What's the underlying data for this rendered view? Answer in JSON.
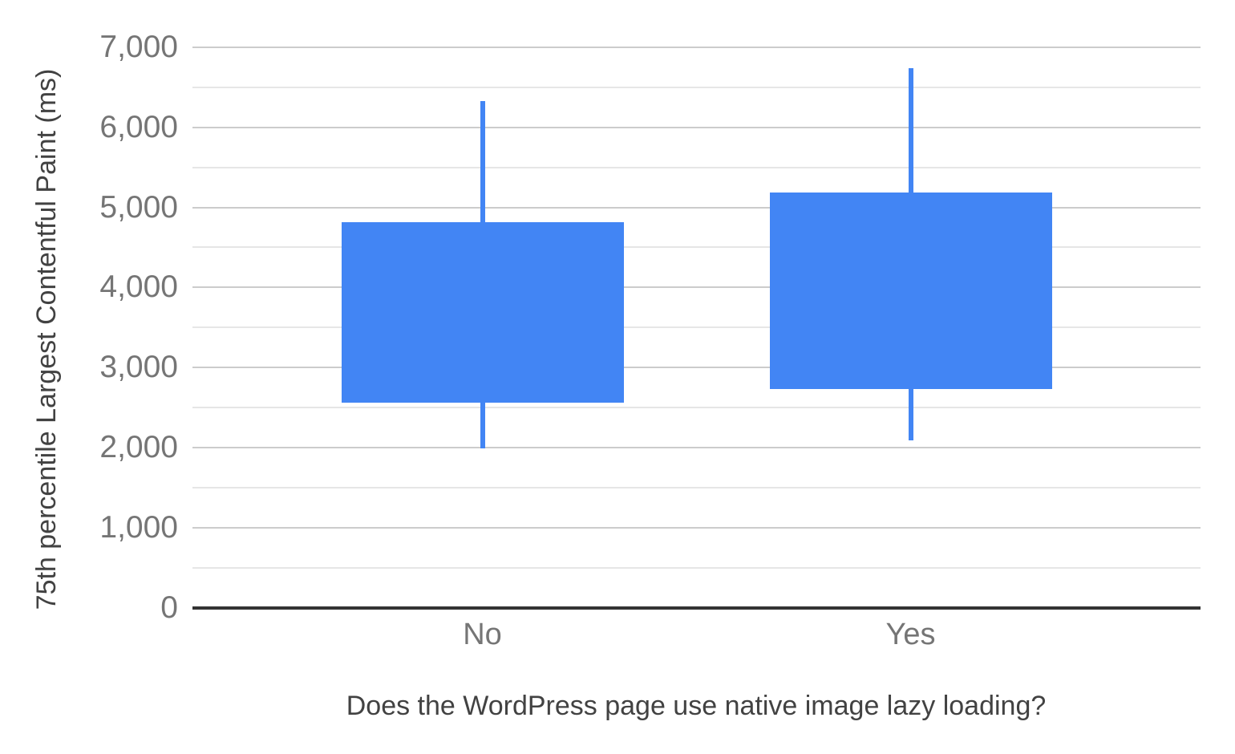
{
  "chart_data": {
    "type": "candlestick",
    "title": "",
    "xlabel": "Does the WordPress page use native image lazy loading?",
    "ylabel": "75th percentile Largest Contentful Paint (ms)",
    "categories": [
      "No",
      "Yes"
    ],
    "series": [
      {
        "category": "No",
        "whisker_low": 1990,
        "box_low": 2560,
        "box_high": 4810,
        "whisker_high": 6330
      },
      {
        "category": "Yes",
        "whisker_low": 2090,
        "box_low": 2730,
        "box_high": 5190,
        "whisker_high": 6740
      }
    ],
    "ylim": [
      0,
      7000
    ],
    "y_major_step": 1000,
    "y_minor_step": 500,
    "y_tick_labels": [
      "0",
      "1,000",
      "2,000",
      "3,000",
      "4,000",
      "5,000",
      "6,000",
      "7,000"
    ],
    "legend_position": "none",
    "grid": "horizontal-major-and-minor",
    "colors": {
      "box_fill": "#4285f4",
      "whisker": "#4285f4",
      "gridline_major": "#cccccc",
      "gridline_minor": "#e6e6e6",
      "axis_baseline": "#333333",
      "tick_label": "#757575",
      "category_label": "#757575",
      "axis_title": "#424242",
      "background": "#ffffff"
    }
  }
}
